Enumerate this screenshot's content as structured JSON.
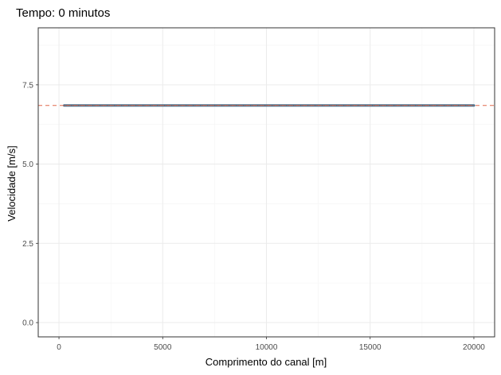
{
  "chart_data": {
    "type": "line",
    "title": "Tempo: 0 minutos",
    "xlabel": "Comprimento do canal [m]",
    "ylabel": "Velocidade [m/s]",
    "xlim": [
      -1000,
      21000
    ],
    "ylim": [
      -0.45,
      9.3
    ],
    "x_ticks": [
      0,
      5000,
      10000,
      15000,
      20000
    ],
    "x_tick_labels": [
      "0",
      "5000",
      "10000",
      "15000",
      "20000"
    ],
    "y_ticks": [
      0.0,
      2.5,
      5.0,
      7.5
    ],
    "y_tick_labels": [
      "0.0",
      "2.5",
      "5.0",
      "7.5"
    ],
    "grid": true,
    "series": [
      {
        "x": [
          250,
          20000
        ],
        "y": [
          6.85,
          6.85
        ],
        "color": "#3b6e8f",
        "style": "solid"
      },
      {
        "y": 6.85,
        "color": "#e06a4d",
        "style": "dashed",
        "kind": "hline"
      }
    ]
  }
}
